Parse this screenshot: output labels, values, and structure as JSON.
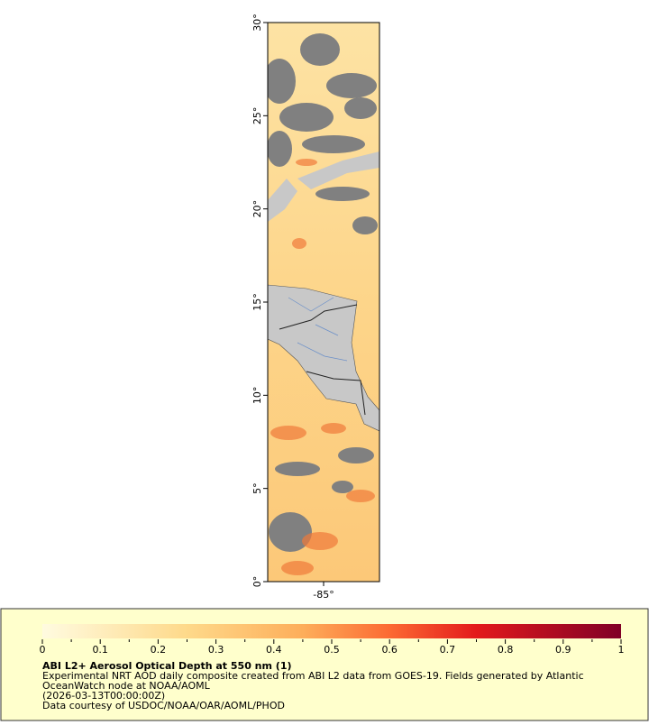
{
  "map": {
    "lon_range": [
      -88,
      -82
    ],
    "lat_range": [
      0,
      30
    ],
    "yticks": [
      {
        "value": 0,
        "label": "0°"
      },
      {
        "value": 5,
        "label": "5°"
      },
      {
        "value": 10,
        "label": "10°"
      },
      {
        "value": 15,
        "label": "15°"
      },
      {
        "value": 20,
        "label": "20°"
      },
      {
        "value": 25,
        "label": "25°"
      },
      {
        "value": 30,
        "label": "30°"
      }
    ],
    "xticks": [
      {
        "value": -85,
        "label": "-85°"
      }
    ]
  },
  "colorbar": {
    "range": [
      0,
      1
    ],
    "ticks": [
      0,
      0.1,
      0.2,
      0.3,
      0.4,
      0.5,
      0.6,
      0.7,
      0.8,
      0.9,
      1
    ]
  },
  "caption": {
    "title": "ABI L2+ Aerosol Optical Depth at 550 nm (1)",
    "lines": [
      "Experimental NRT AOD daily composite created from ABI L2 data from GOES-19. Fields generated by Atlantic",
      "OceanWatch node at NOAA/AOML",
      "(2026-03-13T00:00:00Z)",
      "Data courtesy of USDOC/NOAA/OAR/AOML/PHOD"
    ]
  }
}
